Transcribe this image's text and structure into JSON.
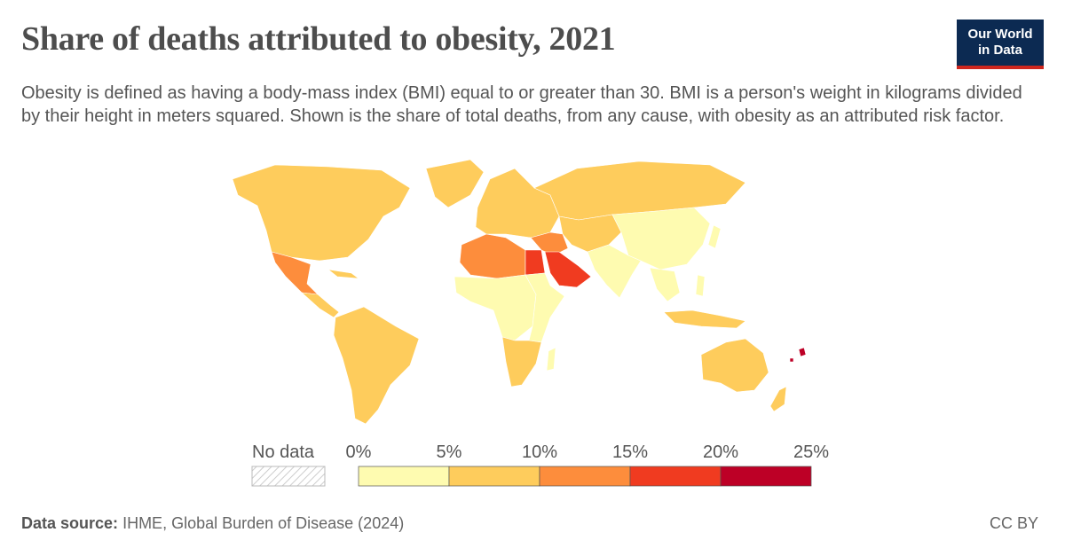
{
  "header": {
    "title": "Share of deaths attributed to obesity, 2021",
    "subtitle": "Obesity is defined as having a body-mass index (BMI) equal to or greater than 30. BMI is a person's weight in kilograms divided by their height in meters squared. Shown is the share of total deaths, from any cause, with obesity as an attributed risk factor."
  },
  "logo": {
    "line1": "Our World",
    "line2": "in Data"
  },
  "legend": {
    "no_data_label": "No data",
    "ticks": [
      "0%",
      "5%",
      "10%",
      "15%",
      "20%",
      "25%"
    ],
    "bins": [
      {
        "range": "0–5%",
        "color": "#fefbb0"
      },
      {
        "range": "5–10%",
        "color": "#fecc5c"
      },
      {
        "range": "10–15%",
        "color": "#fd8d3c"
      },
      {
        "range": "15–20%",
        "color": "#f03b20"
      },
      {
        "range": "20–25%",
        "color": "#bd0026"
      }
    ]
  },
  "map_regions": [
    {
      "region": "North America",
      "bin": "5–10%"
    },
    {
      "region": "Mexico",
      "bin": "10–15%"
    },
    {
      "region": "Central America",
      "bin": "5–10%"
    },
    {
      "region": "South America",
      "bin": "5–10%"
    },
    {
      "region": "Greenland",
      "bin": "5–10%"
    },
    {
      "region": "Europe",
      "bin": "5–10%"
    },
    {
      "region": "Russia",
      "bin": "5–10%"
    },
    {
      "region": "North Africa",
      "bin": "10–15%"
    },
    {
      "region": "Egypt",
      "bin": "15–20%"
    },
    {
      "region": "Arabian Peninsula",
      "bin": "15–20%"
    },
    {
      "region": "Iran / Central Asia",
      "bin": "5–10%"
    },
    {
      "region": "Turkey / Levant",
      "bin": "10–15%"
    },
    {
      "region": "West & Central Africa",
      "bin": "0–5%"
    },
    {
      "region": "East Africa",
      "bin": "0–5%"
    },
    {
      "region": "Southern Africa",
      "bin": "5–10%"
    },
    {
      "region": "South Asia",
      "bin": "0–5%"
    },
    {
      "region": "China / East Asia",
      "bin": "0–5%"
    },
    {
      "region": "Southeast Asia",
      "bin": "0–5%"
    },
    {
      "region": "Indonesia",
      "bin": "5–10%"
    },
    {
      "region": "Australia",
      "bin": "5–10%"
    },
    {
      "region": "New Zealand",
      "bin": "5–10%"
    },
    {
      "region": "Pacific Islands",
      "bin": "20–25%"
    }
  ],
  "footer": {
    "source_label": "Data source:",
    "source_text": "IHME, Global Burden of Disease (2024)",
    "license": "CC BY"
  }
}
